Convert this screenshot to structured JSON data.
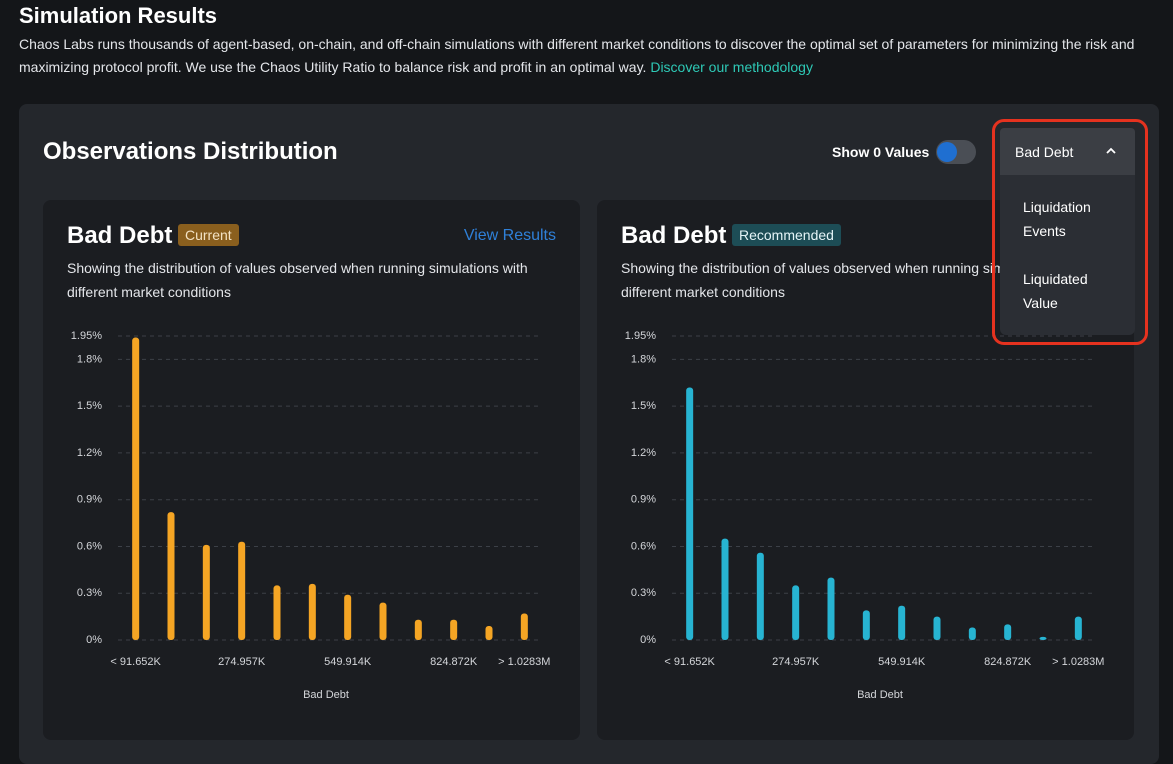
{
  "header": {
    "title": "Simulation Results",
    "description": "Chaos Labs runs thousands of agent-based, on-chain, and off-chain simulations with different market conditions to discover the optimal set of parameters for minimizing the risk and maximizing protocol profit. We use the Chaos Utility Ratio to balance risk and profit in an optimal way.",
    "link": "Discover our methodology"
  },
  "card": {
    "title": "Observations Distribution",
    "toggle_label": "Show 0 Values",
    "dropdown": {
      "selected": "Bad Debt",
      "options": [
        "Liquidation Events",
        "Liquidated Value"
      ]
    }
  },
  "panels": [
    {
      "title": "Bad Debt",
      "badge": "Current",
      "action": "View Results",
      "description": "Showing the distribution of values observed when running simulations with different market conditions",
      "chart": {
        "type": "bar",
        "color": "#f5a524",
        "x_label": "Bad Debt",
        "categories": [
          "< 91.652K",
          null,
          null,
          "274.957K",
          null,
          null,
          "549.914K",
          null,
          null,
          "824.872K",
          null,
          "> 1.0283M"
        ],
        "values": [
          1.94,
          0.82,
          0.61,
          0.63,
          0.35,
          0.36,
          0.29,
          0.24,
          0.13,
          0.13,
          0.09,
          0.17
        ],
        "ylim": [
          0,
          1.95
        ],
        "yticks": [
          {
            "value": 0,
            "label": "0%"
          },
          {
            "value": 0.3,
            "label": "0.3%"
          },
          {
            "value": 0.6,
            "label": "0.6%"
          },
          {
            "value": 0.9,
            "label": "0.9%"
          },
          {
            "value": 1.2,
            "label": "1.2%"
          },
          {
            "value": 1.5,
            "label": "1.5%"
          },
          {
            "value": 1.8,
            "label": "1.8%"
          },
          {
            "value": 1.95,
            "label": "1.95%"
          }
        ],
        "grid": true
      }
    },
    {
      "title": "Bad Debt",
      "badge": "Recommended",
      "description": "Showing the distribution of values observed when running simulations with different market conditions",
      "chart": {
        "type": "bar",
        "color": "#27b4d2",
        "x_label": "Bad Debt",
        "categories": [
          "< 91.652K",
          null,
          null,
          "274.957K",
          null,
          null,
          "549.914K",
          null,
          null,
          "824.872K",
          null,
          "> 1.0283M"
        ],
        "values": [
          1.62,
          0.65,
          0.56,
          0.35,
          0.4,
          0.19,
          0.22,
          0.15,
          0.08,
          0.1,
          0.02,
          0.15
        ],
        "ylim": [
          0,
          1.95
        ],
        "yticks": [
          {
            "value": 0,
            "label": "0%"
          },
          {
            "value": 0.3,
            "label": "0.3%"
          },
          {
            "value": 0.6,
            "label": "0.6%"
          },
          {
            "value": 0.9,
            "label": "0.9%"
          },
          {
            "value": 1.2,
            "label": "1.2%"
          },
          {
            "value": 1.5,
            "label": "1.5%"
          },
          {
            "value": 1.8,
            "label": "1.8%"
          },
          {
            "value": 1.95,
            "label": "1.95%"
          }
        ],
        "grid": true
      }
    }
  ]
}
